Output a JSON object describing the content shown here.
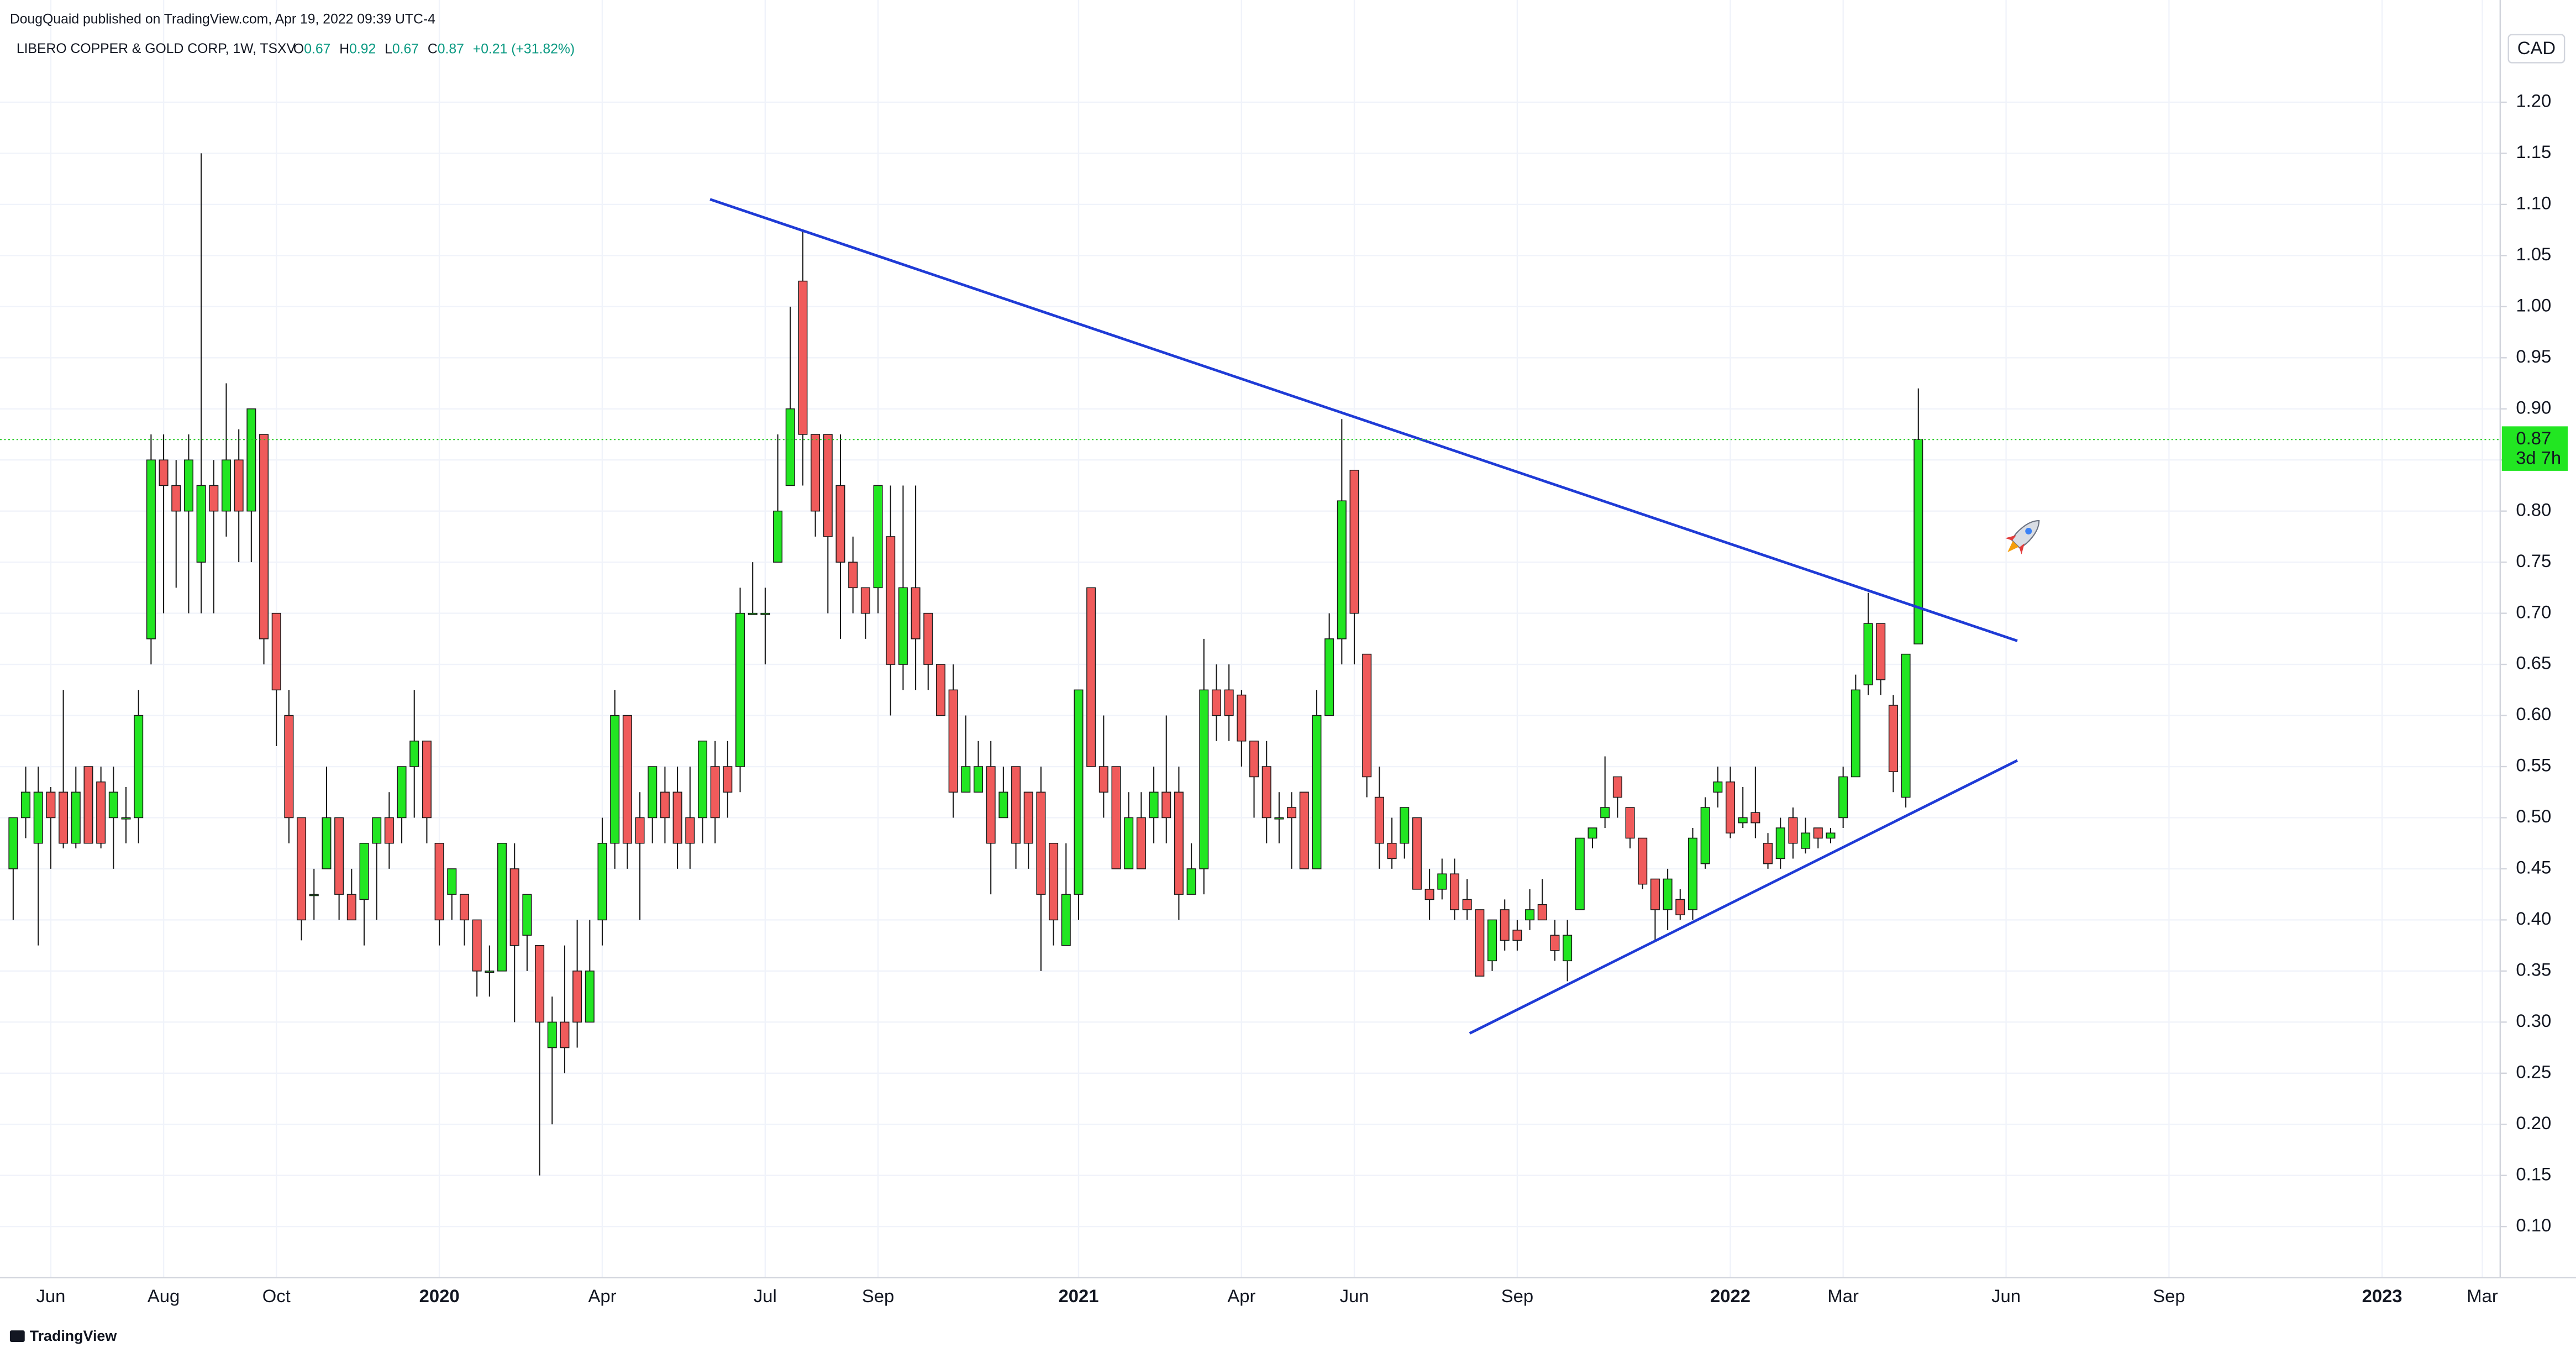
{
  "published": "DougQuaid published on TradingView.com, Apr 19, 2022 09:39 UTC-4",
  "footer": "TradingView",
  "chart_data": {
    "type": "candlestick",
    "title": "LIBERO COPPER & GOLD CORP, 1W, TSXV",
    "ohlc_keys": [
      "O",
      "H",
      "L",
      "C"
    ],
    "change_label": "+0.21 (+31.82%)",
    "currency": "CAD",
    "countdown": "3d 7h",
    "up_color": "#22e622",
    "down_color": "#f05b5b",
    "outline_color": "#1a1a1a",
    "price_line_color": "#22c922",
    "grid": true,
    "ylim": [
      0.05,
      1.3
    ],
    "yticks": [
      {
        "value": 0.1,
        "label": "0.10"
      },
      0.15,
      {
        "value": 0.2,
        "label": "0.20"
      },
      0.25,
      {
        "value": 0.3,
        "label": "0.30"
      },
      0.35,
      {
        "value": 0.4,
        "label": "0.40"
      },
      0.45,
      {
        "value": 0.5,
        "label": "0.50"
      },
      0.55,
      {
        "value": 0.6,
        "label": "0.60"
      },
      0.65,
      {
        "value": 0.7,
        "label": "0.70"
      },
      0.75,
      {
        "value": 0.8,
        "label": "0.80"
      },
      0.85,
      {
        "value": 0.9,
        "label": "0.90"
      },
      0.95,
      {
        "value": 1,
        "label": "1.00"
      },
      1.05,
      {
        "value": 1.1,
        "label": "1.10"
      },
      1.15,
      {
        "value": 1.2,
        "label": "1.20"
      }
    ],
    "categories": [
      null,
      null,
      null,
      "Jun",
      null,
      null,
      null,
      null,
      null,
      null,
      null,
      null,
      "Aug",
      null,
      null,
      null,
      null,
      null,
      null,
      null,
      null,
      "Oct",
      null,
      null,
      null,
      null,
      null,
      null,
      null,
      null,
      null,
      null,
      null,
      null,
      "2020",
      null,
      null,
      null,
      null,
      null,
      null,
      null,
      null,
      null,
      null,
      null,
      null,
      "Apr",
      null,
      null,
      null,
      null,
      null,
      null,
      null,
      null,
      null,
      null,
      null,
      null,
      "Jul",
      null,
      null,
      null,
      null,
      null,
      null,
      null,
      null,
      "Sep",
      null,
      null,
      null,
      null,
      null,
      null,
      null,
      null,
      null,
      null,
      null,
      null,
      null,
      null,
      null,
      "2021",
      null,
      null,
      null,
      null,
      null,
      null,
      null,
      null,
      null,
      null,
      null,
      null,
      "Apr",
      null,
      null,
      null,
      null,
      null,
      null,
      null,
      null,
      "Jun",
      null,
      null,
      null,
      null,
      null,
      null,
      null,
      null,
      null,
      null,
      null,
      null,
      "Sep",
      null,
      null,
      null,
      null,
      null,
      null,
      null,
      null,
      null,
      null,
      null,
      null,
      null,
      null,
      null,
      null,
      "2022",
      null,
      null,
      null,
      null,
      null,
      null,
      null,
      null,
      "Mar",
      null,
      null,
      null,
      null,
      null,
      null,
      null,
      null,
      null,
      null,
      null,
      null,
      "Jun",
      null,
      null,
      null,
      null,
      null,
      null,
      null,
      null,
      null,
      null,
      null,
      null,
      "Sep",
      null,
      null,
      null,
      null,
      null,
      null,
      null,
      null,
      null,
      null,
      null,
      null,
      null,
      null,
      null,
      null,
      "2023",
      null,
      null,
      null,
      null,
      null,
      null,
      null,
      "Mar",
      null
    ],
    "open": [
      0.45,
      0.5,
      0.475,
      0.525,
      0.525,
      0.475,
      0.55,
      0.535,
      0.5,
      0.5,
      0.5,
      0.675,
      0.85,
      0.825,
      0.8,
      0.75,
      0.825,
      0.8,
      0.85,
      0.8,
      0.875,
      0.7,
      0.6,
      0.5,
      0.425,
      0.45,
      0.5,
      0.425,
      0.42,
      0.475,
      0.5,
      0.5,
      0.55,
      0.575,
      0.475,
      0.425,
      0.425,
      0.4,
      0.35,
      0.35,
      0.45,
      0.385,
      0.375,
      0.275,
      0.3,
      0.35,
      0.3,
      0.4,
      0.475,
      0.6,
      0.5,
      0.5,
      0.525,
      0.525,
      0.5,
      0.5,
      0.55,
      0.55,
      0.55,
      0.7,
      0.7,
      0.75,
      0.825,
      1.025,
      0.875,
      0.875,
      0.825,
      0.75,
      0.725,
      0.725,
      0.775,
      0.65,
      0.725,
      0.7,
      0.65,
      0.625,
      0.525,
      0.525,
      0.55,
      0.5,
      0.55,
      0.525,
      0.525,
      0.475,
      0.375,
      0.425,
      0.725,
      0.55,
      0.55,
      0.45,
      0.5,
      0.5,
      0.525,
      0.525,
      0.425,
      0.45,
      0.625,
      0.625,
      0.62,
      0.575,
      0.55,
      0.5,
      0.51,
      0.525,
      0.45,
      0.6,
      0.675,
      0.84,
      0.66,
      0.52,
      0.475,
      0.475,
      0.5,
      0.43,
      0.43,
      0.445,
      0.42,
      0.41,
      0.36,
      0.41,
      0.39,
      0.4,
      0.415,
      0.385,
      0.36,
      0.41,
      0.48,
      0.5,
      0.54,
      0.51,
      0.48,
      0.44,
      0.41,
      0.42,
      0.41,
      0.455,
      0.525,
      0.535,
      0.495,
      0.505,
      0.475,
      0.46,
      0.5,
      0.47,
      0.49,
      0.48,
      0.5,
      0.54,
      0.63,
      0.69,
      0.61,
      0.52,
      0.67,
      null,
      null,
      null,
      null,
      null,
      null,
      null,
      null,
      null,
      null,
      null,
      null,
      null,
      null,
      null,
      null,
      null,
      null,
      null,
      null,
      null,
      null,
      null,
      null,
      null,
      null,
      null,
      null,
      null,
      null,
      null,
      null,
      null,
      null,
      null,
      null,
      null,
      null,
      null,
      null,
      null,
      null,
      null,
      null,
      null,
      null
    ],
    "high": [
      0.5,
      0.55,
      0.55,
      0.53,
      0.625,
      0.55,
      0.55,
      0.55,
      0.55,
      0.53,
      0.625,
      0.875,
      0.875,
      0.85,
      0.875,
      1.15,
      0.85,
      0.925,
      0.88,
      0.9,
      0.875,
      0.7,
      0.625,
      0.5,
      0.45,
      0.55,
      0.5,
      0.45,
      0.475,
      0.5,
      0.525,
      0.55,
      0.625,
      0.575,
      0.475,
      0.45,
      0.425,
      0.4,
      0.375,
      0.475,
      0.475,
      0.425,
      0.375,
      0.325,
      0.375,
      0.4,
      0.4,
      0.5,
      0.625,
      0.6,
      0.525,
      0.55,
      0.55,
      0.55,
      0.55,
      0.575,
      0.575,
      0.575,
      0.725,
      0.75,
      0.725,
      0.875,
      1.0,
      1.075,
      0.875,
      0.875,
      0.875,
      0.775,
      0.725,
      0.825,
      0.825,
      0.825,
      0.825,
      0.7,
      0.65,
      0.65,
      0.6,
      0.575,
      0.575,
      0.55,
      0.55,
      0.525,
      0.55,
      0.475,
      0.475,
      0.625,
      0.725,
      0.6,
      0.55,
      0.525,
      0.525,
      0.55,
      0.6,
      0.55,
      0.475,
      0.675,
      0.65,
      0.65,
      0.625,
      0.575,
      0.575,
      0.525,
      0.525,
      0.525,
      0.625,
      0.7,
      0.89,
      0.84,
      0.66,
      0.55,
      0.5,
      0.51,
      0.5,
      0.45,
      0.46,
      0.46,
      0.44,
      0.41,
      0.4,
      0.42,
      0.4,
      0.43,
      0.44,
      0.4,
      0.4,
      0.48,
      0.49,
      0.56,
      0.54,
      0.51,
      0.48,
      0.44,
      0.45,
      0.43,
      0.49,
      0.52,
      0.55,
      0.55,
      0.53,
      0.55,
      0.485,
      0.5,
      0.51,
      0.5,
      0.49,
      0.49,
      0.55,
      0.64,
      0.72,
      0.69,
      0.62,
      0.66,
      0.92,
      null,
      null,
      null,
      null,
      null,
      null,
      null,
      null,
      null,
      null,
      null,
      null,
      null,
      null,
      null,
      null,
      null,
      null,
      null,
      null,
      null,
      null,
      null,
      null,
      null,
      null,
      null,
      null,
      null,
      null,
      null,
      null,
      null,
      null,
      null,
      null,
      null,
      null,
      null,
      null,
      null,
      null,
      null,
      null,
      null,
      null
    ],
    "low": [
      0.4,
      0.48,
      0.375,
      0.45,
      0.47,
      0.47,
      0.475,
      0.47,
      0.45,
      0.475,
      0.475,
      0.65,
      0.7,
      0.725,
      0.7,
      0.7,
      0.7,
      0.775,
      0.75,
      0.75,
      0.65,
      0.57,
      0.475,
      0.38,
      0.4,
      0.45,
      0.4,
      0.4,
      0.375,
      0.4,
      0.45,
      0.475,
      0.5,
      0.475,
      0.375,
      0.4,
      0.375,
      0.325,
      0.325,
      0.35,
      0.3,
      0.35,
      0.15,
      0.2,
      0.25,
      0.275,
      0.3,
      0.375,
      0.45,
      0.45,
      0.4,
      0.475,
      0.475,
      0.45,
      0.45,
      0.475,
      0.475,
      0.5,
      0.525,
      0.7,
      0.65,
      0.75,
      0.825,
      0.825,
      0.775,
      0.7,
      0.675,
      0.7,
      0.675,
      0.7,
      0.6,
      0.625,
      0.625,
      0.625,
      0.6,
      0.5,
      0.525,
      0.525,
      0.425,
      0.5,
      0.45,
      0.45,
      0.35,
      0.375,
      0.375,
      0.4,
      0.55,
      0.5,
      0.45,
      0.45,
      0.45,
      0.475,
      0.475,
      0.4,
      0.425,
      0.425,
      0.575,
      0.575,
      0.55,
      0.5,
      0.475,
      0.475,
      0.45,
      0.45,
      0.45,
      0.6,
      0.65,
      0.65,
      0.52,
      0.45,
      0.45,
      0.46,
      0.43,
      0.4,
      0.42,
      0.4,
      0.4,
      0.345,
      0.35,
      0.37,
      0.37,
      0.39,
      0.4,
      0.36,
      0.34,
      0.41,
      0.47,
      0.49,
      0.5,
      0.47,
      0.43,
      0.38,
      0.39,
      0.4,
      0.4,
      0.45,
      0.51,
      0.48,
      0.49,
      0.48,
      0.45,
      0.45,
      0.46,
      0.465,
      0.47,
      0.475,
      0.49,
      0.54,
      0.62,
      0.62,
      0.525,
      0.51,
      0.67,
      null,
      null,
      null,
      null,
      null,
      null,
      null,
      null,
      null,
      null,
      null,
      null,
      null,
      null,
      null,
      null,
      null,
      null,
      null,
      null,
      null,
      null,
      null,
      null,
      null,
      null,
      null,
      null,
      null,
      null,
      null,
      null,
      null,
      null,
      null,
      null,
      null,
      null,
      null,
      null,
      null,
      null,
      null,
      null,
      null,
      null
    ],
    "close": [
      0.5,
      0.525,
      0.525,
      0.5,
      0.475,
      0.525,
      0.475,
      0.475,
      0.525,
      0.5,
      0.6,
      0.85,
      0.825,
      0.8,
      0.85,
      0.825,
      0.8,
      0.85,
      0.8,
      0.9,
      0.675,
      0.625,
      0.5,
      0.4,
      0.425,
      0.5,
      0.425,
      0.4,
      0.475,
      0.5,
      0.475,
      0.55,
      0.575,
      0.5,
      0.4,
      0.45,
      0.4,
      0.35,
      0.35,
      0.475,
      0.375,
      0.425,
      0.3,
      0.3,
      0.275,
      0.3,
      0.35,
      0.475,
      0.6,
      0.475,
      0.475,
      0.55,
      0.5,
      0.475,
      0.475,
      0.575,
      0.5,
      0.525,
      0.7,
      0.7,
      0.7,
      0.8,
      0.9,
      0.875,
      0.8,
      0.775,
      0.75,
      0.725,
      0.7,
      0.825,
      0.65,
      0.725,
      0.675,
      0.65,
      0.6,
      0.525,
      0.55,
      0.55,
      0.475,
      0.525,
      0.475,
      0.475,
      0.425,
      0.4,
      0.425,
      0.625,
      0.55,
      0.525,
      0.45,
      0.5,
      0.45,
      0.525,
      0.5,
      0.425,
      0.45,
      0.625,
      0.6,
      0.6,
      0.575,
      0.54,
      0.5,
      0.5,
      0.5,
      0.45,
      0.6,
      0.675,
      0.81,
      0.7,
      0.54,
      0.475,
      0.46,
      0.51,
      0.43,
      0.42,
      0.445,
      0.41,
      0.41,
      0.345,
      0.4,
      0.38,
      0.38,
      0.41,
      0.4,
      0.37,
      0.385,
      0.48,
      0.49,
      0.51,
      0.52,
      0.48,
      0.435,
      0.41,
      0.44,
      0.405,
      0.48,
      0.51,
      0.535,
      0.485,
      0.5,
      0.495,
      0.455,
      0.49,
      0.475,
      0.485,
      0.48,
      0.485,
      0.54,
      0.625,
      0.69,
      0.635,
      0.545,
      0.66,
      0.87,
      null,
      null,
      null,
      null,
      null,
      null,
      null,
      null,
      null,
      null,
      null,
      null,
      null,
      null,
      null,
      null,
      null,
      null,
      null,
      null,
      null,
      null,
      null,
      null,
      null,
      null,
      null,
      null,
      null,
      null,
      null,
      null,
      null,
      null,
      null,
      null,
      null,
      null,
      null,
      null,
      null,
      null,
      null,
      null,
      null,
      null
    ],
    "trend_lines": [
      {
        "color": "#1f3bd6",
        "points": [
          [
            55.6,
            1.105
          ],
          [
            159.9,
            0.673
          ]
        ]
      },
      {
        "color": "#1f3bd6",
        "points": [
          [
            116.2,
            0.289
          ],
          [
            159.9,
            0.556
          ]
        ]
      }
    ]
  }
}
